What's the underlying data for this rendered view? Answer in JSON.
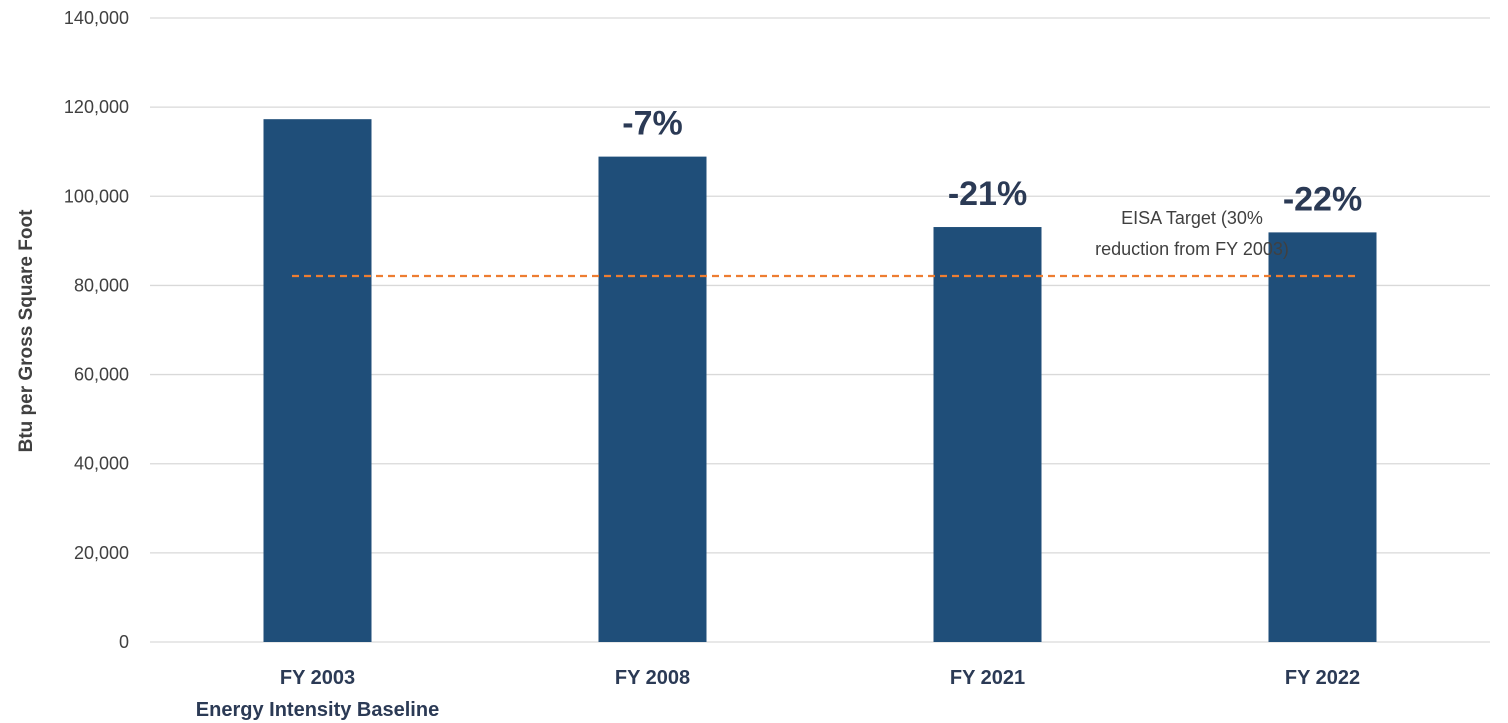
{
  "chart_data": {
    "type": "bar",
    "categories": [
      "FY 2003",
      "FY 2008",
      "FY 2021",
      "FY 2022"
    ],
    "category_sublabels": [
      "Energy Intensity Baseline",
      "",
      "",
      ""
    ],
    "values": [
      117300,
      108900,
      93100,
      91900
    ],
    "data_labels": [
      "",
      "-7%",
      "-21%",
      "-22%"
    ],
    "ylabel": "Btu per Gross Square Foot",
    "xlabel": "",
    "ylim": [
      0,
      140000
    ],
    "yticks": [
      0,
      20000,
      40000,
      60000,
      80000,
      100000,
      120000,
      140000
    ],
    "ytick_labels": [
      "0",
      "20,000",
      "40,000",
      "60,000",
      "80,000",
      "100,000",
      "120,000",
      "140,000"
    ],
    "target": {
      "value": 82110,
      "label_lines": [
        "EISA Target (30%",
        "reduction from FY 2003)"
      ],
      "color": "#ed7d31",
      "style": "dashed"
    },
    "bar_color": "#1f4e79",
    "grid": true,
    "legend": "none"
  }
}
